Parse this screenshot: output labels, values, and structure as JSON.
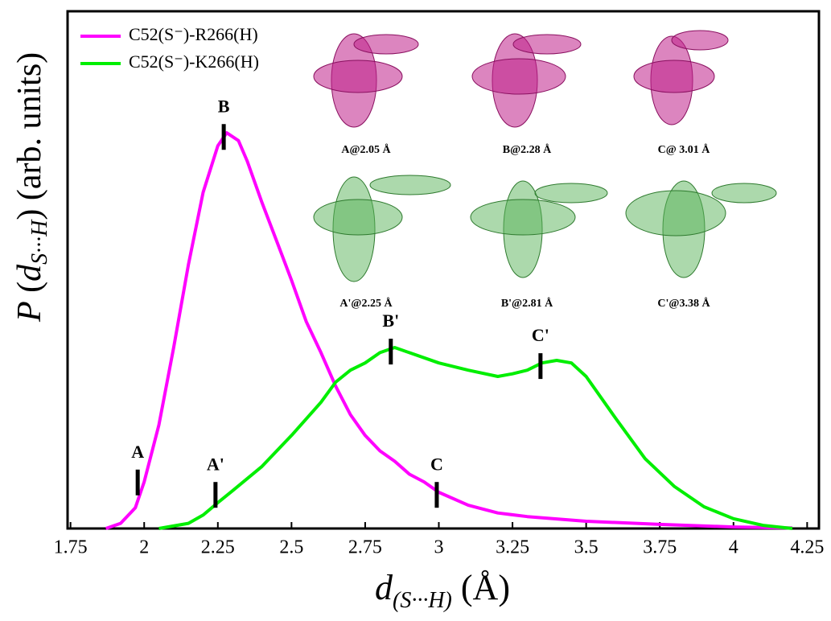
{
  "chart_data": {
    "type": "line",
    "x_label": {
      "main": "d",
      "sub": "(S···H)",
      "unit": "(Å)"
    },
    "y_label": {
      "main": "P",
      "open": "(",
      "var": "d",
      "sub": "S···H",
      "close": ")",
      "unit": "(arb. units)"
    },
    "xlim": [
      1.74,
      4.29
    ],
    "ylim": [
      0,
      100
    ],
    "xticks": [
      1.75,
      2,
      2.25,
      2.5,
      2.75,
      3,
      3.25,
      3.5,
      3.75,
      4,
      4.25
    ],
    "legend": "upper left",
    "series": [
      {
        "name": "C52(S⁻)-R266(H)",
        "color": "#ff00ff",
        "x": [
          1.87,
          1.92,
          1.97,
          2.0,
          2.05,
          2.1,
          2.15,
          2.2,
          2.25,
          2.28,
          2.32,
          2.35,
          2.4,
          2.45,
          2.5,
          2.55,
          2.6,
          2.65,
          2.7,
          2.75,
          2.8,
          2.85,
          2.9,
          2.95,
          3.0,
          3.1,
          3.2,
          3.3,
          3.5,
          3.75,
          4.0,
          4.2
        ],
        "values": [
          0,
          1,
          4,
          9,
          20,
          35,
          51,
          65,
          74,
          76.5,
          75,
          71,
          63,
          55.5,
          48,
          40,
          34,
          27.5,
          22,
          18,
          15,
          13,
          10.5,
          9,
          7,
          4.5,
          3,
          2.3,
          1.4,
          0.8,
          0.3,
          0.1
        ]
      },
      {
        "name": "C52(S⁻)-K266(H)",
        "color": "#00ee00",
        "x": [
          2.05,
          2.15,
          2.2,
          2.25,
          2.3,
          2.4,
          2.5,
          2.6,
          2.65,
          2.7,
          2.75,
          2.8,
          2.85,
          2.9,
          3.0,
          3.1,
          3.2,
          3.25,
          3.3,
          3.35,
          3.4,
          3.45,
          3.5,
          3.6,
          3.7,
          3.8,
          3.9,
          4.0,
          4.1,
          4.2
        ],
        "values": [
          0,
          1,
          2.6,
          5,
          7.3,
          12,
          18,
          24.4,
          28.3,
          30.6,
          32,
          34,
          35,
          34,
          32,
          30.6,
          29.4,
          29.9,
          30.6,
          32,
          32.5,
          32,
          29.4,
          21.3,
          13.5,
          8.1,
          4.2,
          1.9,
          0.6,
          0
        ]
      }
    ],
    "annotations": [
      {
        "text": "A",
        "x": 1.978,
        "y": 8.9
      },
      {
        "text": "B",
        "x": 2.27,
        "y": 75.7
      },
      {
        "text": "C",
        "x": 2.993,
        "y": 6.5
      },
      {
        "text": "A'",
        "x": 2.242,
        "y": 6.5
      },
      {
        "text": "B'",
        "x": 2.837,
        "y": 34.2
      },
      {
        "text": "C'",
        "x": 3.345,
        "y": 31.4
      }
    ],
    "image_captions": [
      "A@2.05 Å",
      "B@2.28 Å",
      "C@ 3.01 Å",
      "A'@2.25 Å",
      "B'@2.81 Å",
      "C'@3.38 Å"
    ]
  }
}
